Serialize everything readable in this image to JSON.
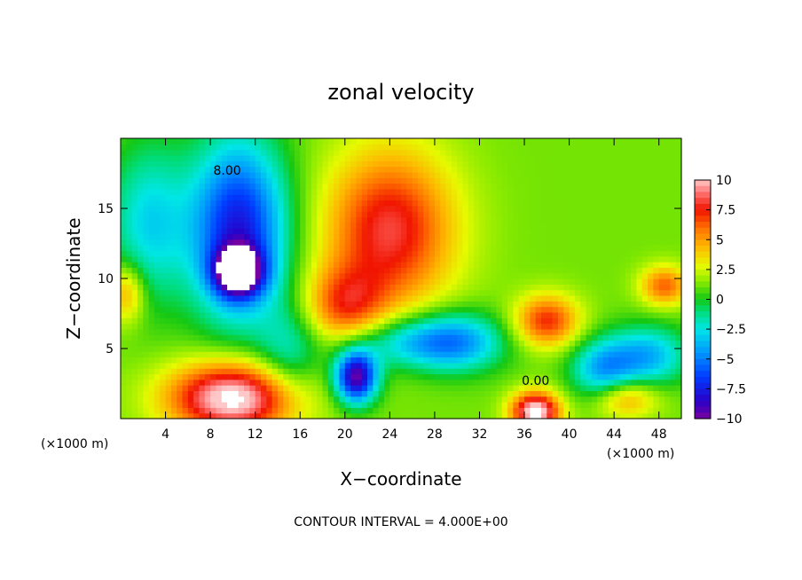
{
  "chart_data": {
    "type": "heatmap",
    "title": "zonal velocity",
    "xlabel": "X−coordinate",
    "ylabel": "Z−coordinate",
    "x_unit_left": "(×1000 m)",
    "x_unit_right": "(×1000 m)",
    "footer": "CONTOUR INTERVAL = 4.000E+00",
    "x_ticks": [
      4,
      8,
      12,
      16,
      20,
      24,
      28,
      32,
      36,
      40,
      44,
      48
    ],
    "y_ticks": [
      5,
      10,
      15
    ],
    "xlim": [
      0,
      50
    ],
    "ylim": [
      0,
      20
    ],
    "colorbar": {
      "ticks": [
        10,
        7.5,
        5,
        2.5,
        0,
        -2.5,
        -5,
        -7.5,
        -10
      ],
      "tick_labels": [
        "10",
        "7.5",
        "5",
        "2.5",
        "0",
        "−2.5",
        "−5",
        "−7.5",
        "−10"
      ],
      "range": [
        -10,
        10
      ]
    },
    "contour_labels": [
      {
        "text": "8.00",
        "x": 9.5,
        "y": 17.4
      },
      {
        "text": "0.00",
        "x": 37.0,
        "y": 2.4
      }
    ],
    "features": [
      {
        "x": 10.5,
        "y": 13.5,
        "value": -9,
        "sx": 3.0,
        "sy": 4.5
      },
      {
        "x": 10.5,
        "y": 10.5,
        "value": -11,
        "sx": 1.5,
        "sy": 1.2
      },
      {
        "x": 2.5,
        "y": 14.0,
        "value": -4,
        "sx": 2.5,
        "sy": 4.0
      },
      {
        "x": 24.0,
        "y": 13.5,
        "value": 7,
        "sx": 4.0,
        "sy": 4.0
      },
      {
        "x": 20.0,
        "y": 8.0,
        "value": 5,
        "sx": 2.5,
        "sy": 2.0
      },
      {
        "x": 10.0,
        "y": 1.5,
        "value": 10,
        "sx": 4.0,
        "sy": 1.8
      },
      {
        "x": 21.0,
        "y": 3.0,
        "value": -11,
        "sx": 1.3,
        "sy": 1.3
      },
      {
        "x": 25.0,
        "y": 5.5,
        "value": -4,
        "sx": 4.0,
        "sy": 1.3
      },
      {
        "x": 30.0,
        "y": 5.5,
        "value": -5,
        "sx": 3.0,
        "sy": 1.5
      },
      {
        "x": 37.0,
        "y": 0.5,
        "value": 10,
        "sx": 1.5,
        "sy": 1.0
      },
      {
        "x": 38.0,
        "y": 7.0,
        "value": 6,
        "sx": 2.0,
        "sy": 1.3
      },
      {
        "x": 43.0,
        "y": 3.5,
        "value": -5,
        "sx": 2.0,
        "sy": 1.5
      },
      {
        "x": 47.0,
        "y": 4.5,
        "value": -5,
        "sx": 2.5,
        "sy": 1.5
      },
      {
        "x": 48.5,
        "y": 9.5,
        "value": 5,
        "sx": 1.5,
        "sy": 1.0
      },
      {
        "x": 0.5,
        "y": 9.0,
        "value": 4,
        "sx": 1.2,
        "sy": 1.5
      },
      {
        "x": 45.0,
        "y": 1.5,
        "value": 4,
        "sx": 2.0,
        "sy": 1.0
      },
      {
        "x": 15.0,
        "y": 4.5,
        "value": -3,
        "sx": 2.0,
        "sy": 2.5
      }
    ],
    "background": 1.2
  }
}
